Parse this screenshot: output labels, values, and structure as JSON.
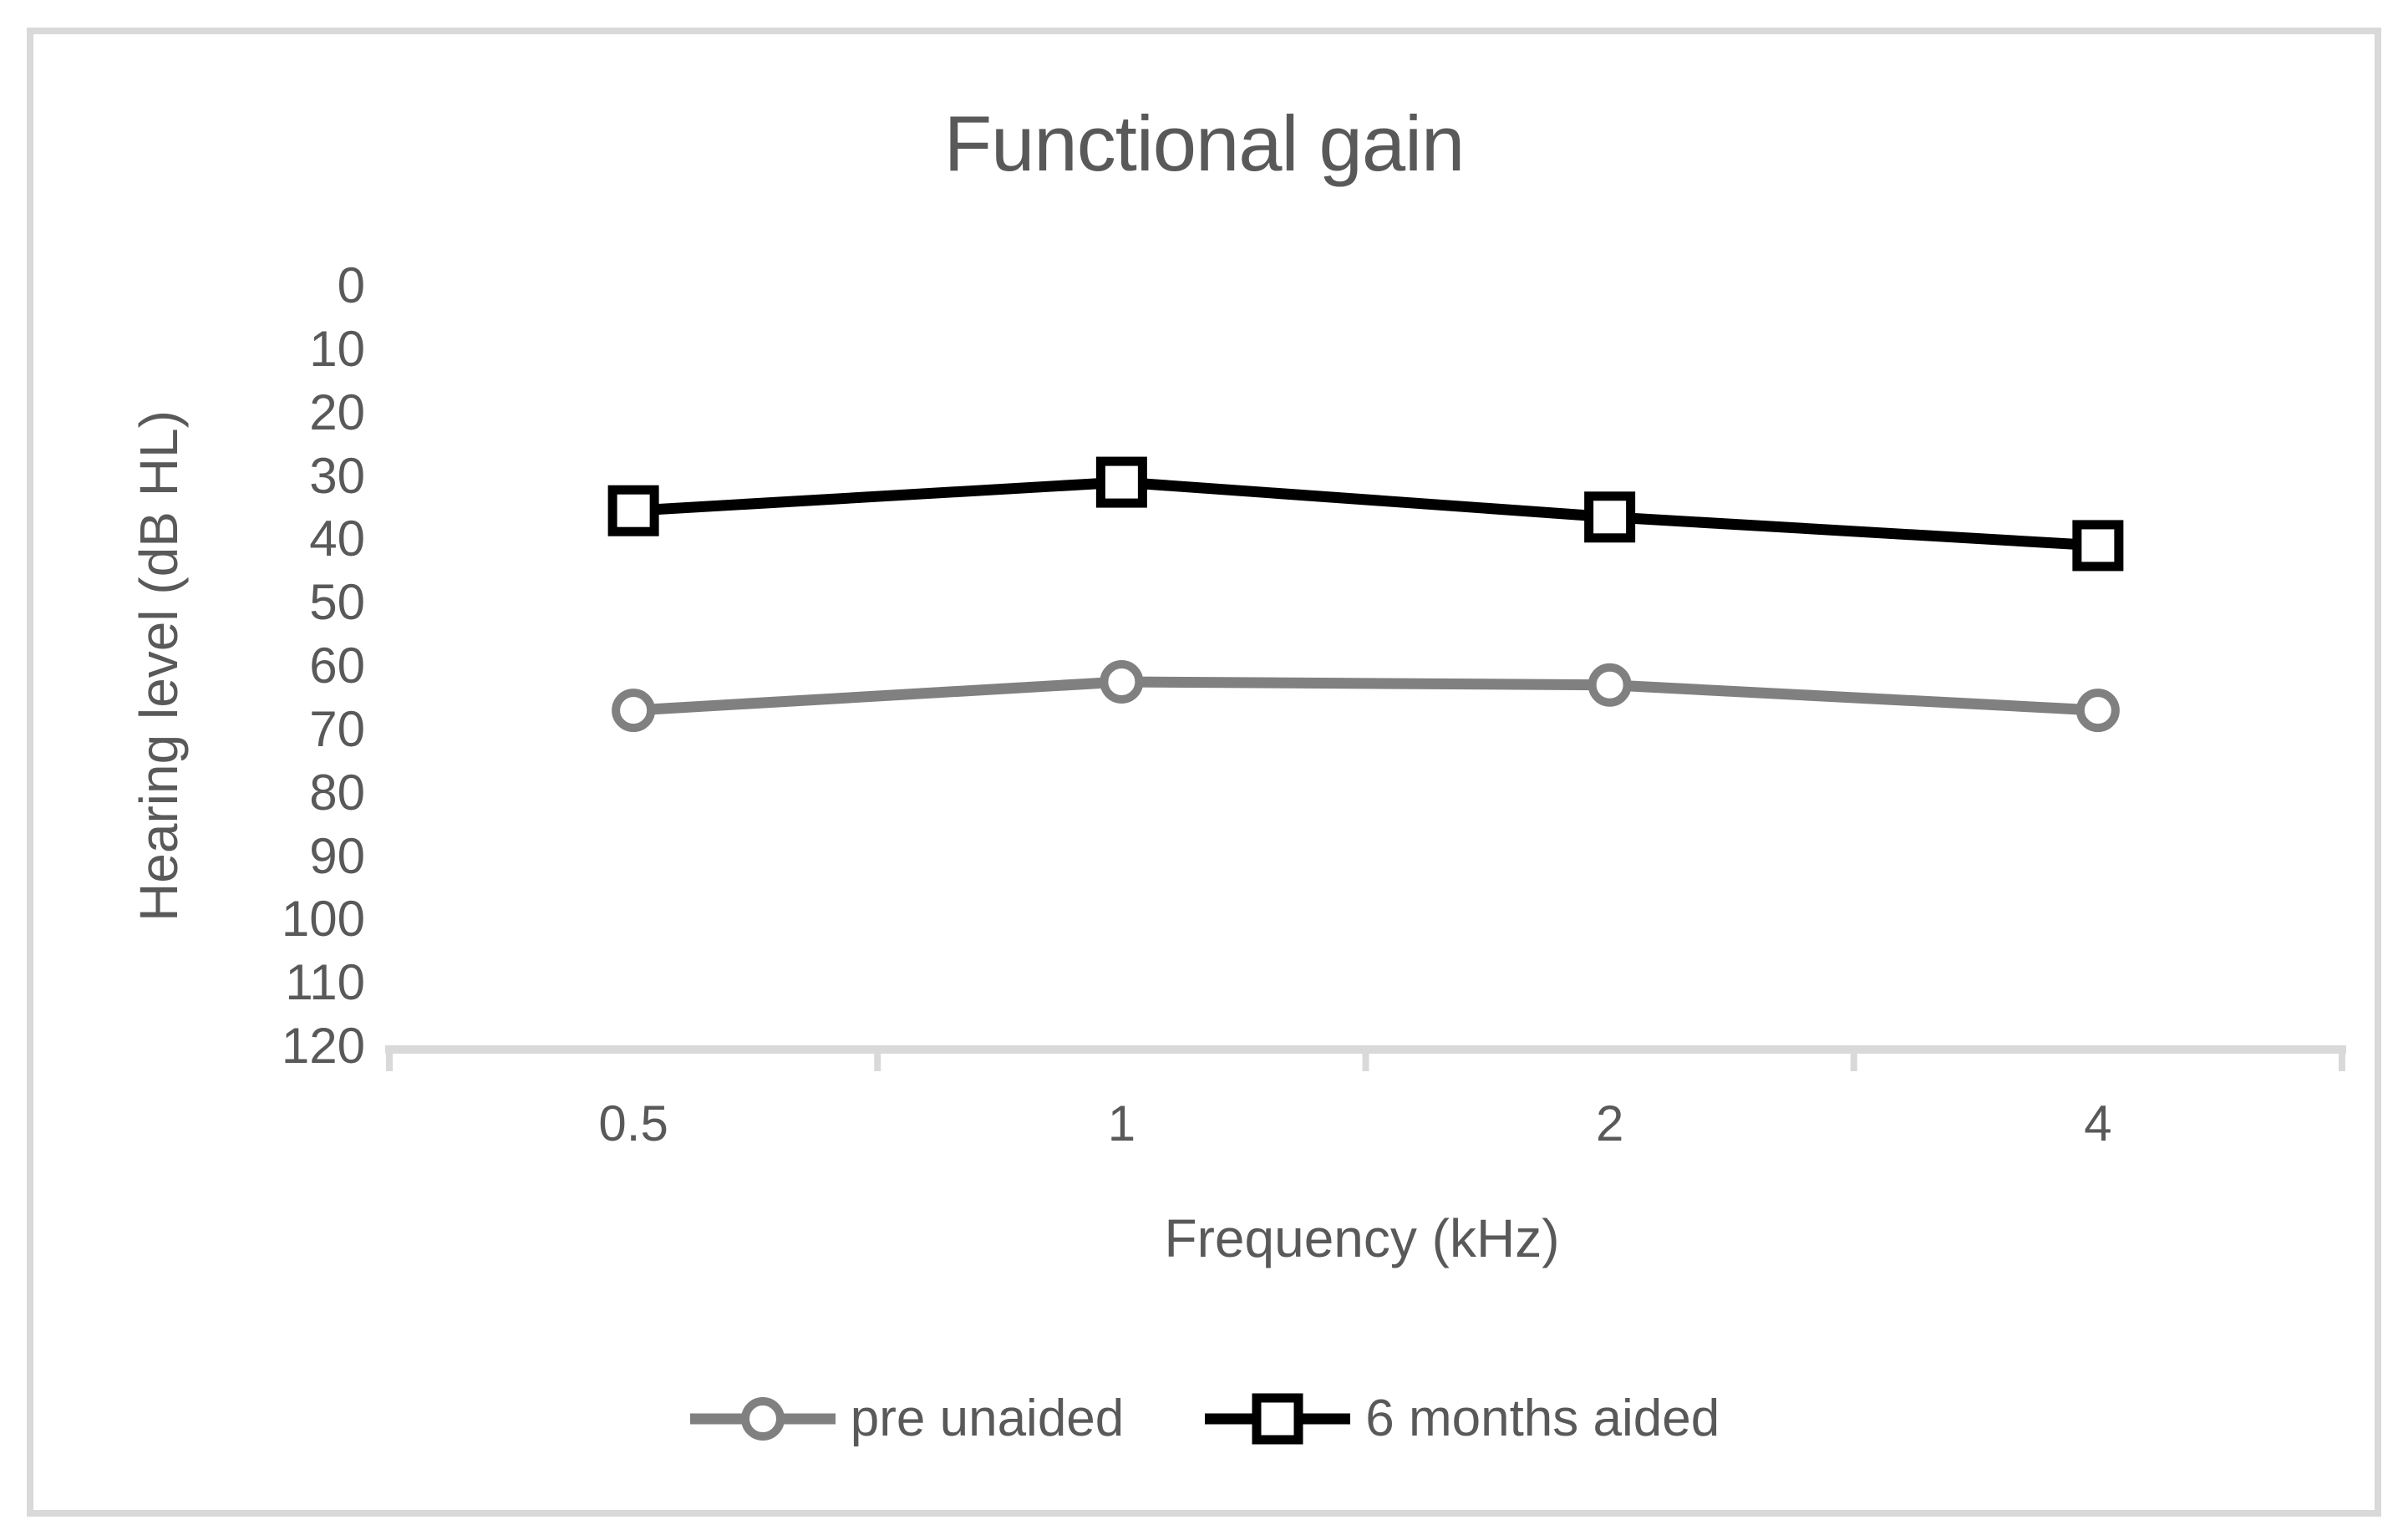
{
  "figure": {
    "background": "#ffffff",
    "border_color": "#d9d9d9",
    "text_color": "#595959",
    "axis_color": "#d9d9d9"
  },
  "chart_data": {
    "type": "line",
    "title": "Functional gain",
    "xlabel": "Frequency (kHz)",
    "ylabel": "Hearing level (dB HL)",
    "categories": [
      "0.5",
      "1",
      "2",
      "4"
    ],
    "series": [
      {
        "name": "pre unaided",
        "values": [
          67,
          62.5,
          63,
          67
        ],
        "color": "#808080",
        "marker": "circle"
      },
      {
        "name": "6 months aided",
        "values": [
          35.5,
          31,
          36.5,
          41
        ],
        "color": "#000000",
        "marker": "square"
      }
    ],
    "y_ticks": [
      0,
      10,
      20,
      30,
      40,
      50,
      60,
      70,
      80,
      90,
      100,
      110,
      120
    ],
    "ylim": [
      0,
      120
    ],
    "y_axis_inverted": true,
    "grid": false,
    "legend_position": "bottom"
  }
}
